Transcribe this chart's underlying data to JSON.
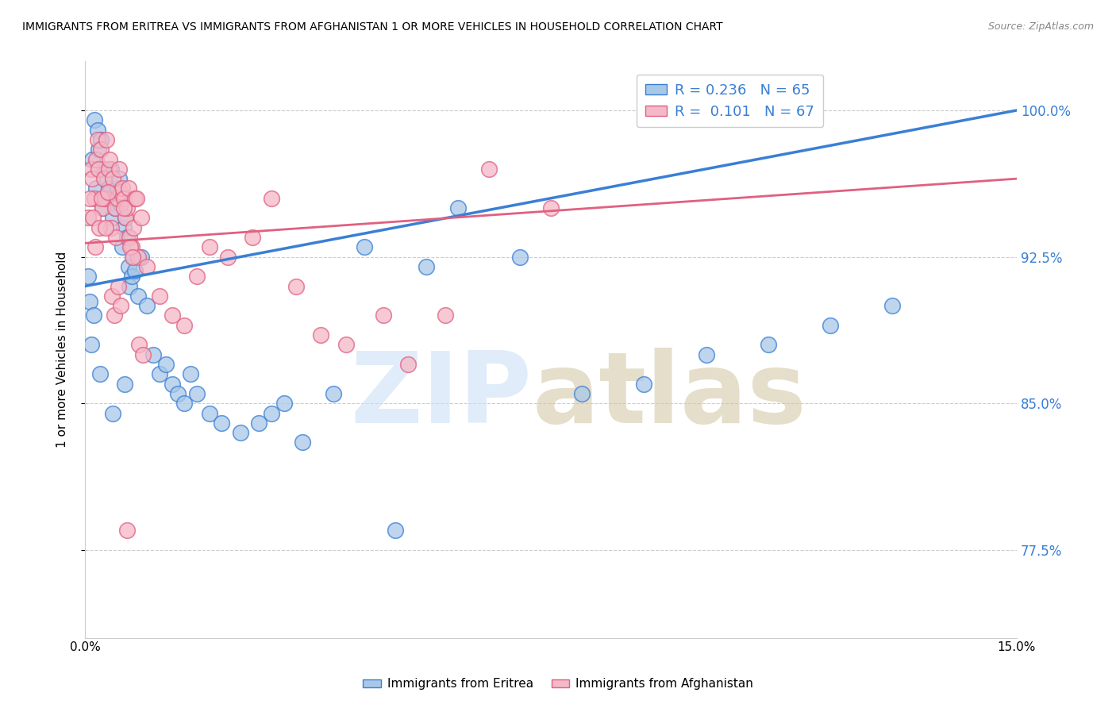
{
  "title": "IMMIGRANTS FROM ERITREA VS IMMIGRANTS FROM AFGHANISTAN 1 OR MORE VEHICLES IN HOUSEHOLD CORRELATION CHART",
  "source": "Source: ZipAtlas.com",
  "ylabel": "1 or more Vehicles in Household",
  "R_eritrea": 0.236,
  "N_eritrea": 65,
  "R_afghanistan": 0.101,
  "N_afghanistan": 67,
  "color_eritrea": "#a8c8e8",
  "color_afghanistan": "#f5b8c8",
  "line_color_eritrea": "#3a7fd5",
  "line_color_afghanistan": "#e06080",
  "legend_eritrea": "Immigrants from Eritrea",
  "legend_afghanistan": "Immigrants from Afghanistan",
  "xmin": 0.0,
  "xmax": 15.0,
  "ymin": 73.0,
  "ymax": 102.5,
  "yticks": [
    77.5,
    85.0,
    92.5,
    100.0
  ],
  "blue_line_x0": 0.0,
  "blue_line_y0": 91.0,
  "blue_line_x1": 15.0,
  "blue_line_y1": 100.0,
  "pink_line_x0": 0.0,
  "pink_line_y0": 93.2,
  "pink_line_x1": 15.0,
  "pink_line_y1": 96.5,
  "eritrea_x": [
    0.05,
    0.1,
    0.12,
    0.15,
    0.18,
    0.2,
    0.22,
    0.25,
    0.28,
    0.3,
    0.32,
    0.35,
    0.38,
    0.4,
    0.42,
    0.45,
    0.48,
    0.5,
    0.52,
    0.55,
    0.58,
    0.6,
    0.62,
    0.65,
    0.68,
    0.7,
    0.72,
    0.75,
    0.78,
    0.8,
    0.85,
    0.9,
    1.0,
    1.1,
    1.2,
    1.3,
    1.4,
    1.5,
    1.6,
    1.7,
    1.8,
    2.0,
    2.2,
    2.5,
    2.8,
    3.0,
    3.2,
    3.5,
    4.0,
    4.5,
    5.0,
    5.5,
    6.0,
    7.0,
    8.0,
    9.0,
    10.0,
    11.0,
    12.0,
    13.0,
    0.08,
    0.14,
    0.24,
    0.44,
    0.64
  ],
  "eritrea_y": [
    91.5,
    88.0,
    97.5,
    99.5,
    96.0,
    99.0,
    98.0,
    98.5,
    95.0,
    97.0,
    96.5,
    95.5,
    96.0,
    95.8,
    97.0,
    94.5,
    95.0,
    95.5,
    96.0,
    96.5,
    95.2,
    93.0,
    94.0,
    94.5,
    93.5,
    92.0,
    91.0,
    91.5,
    92.5,
    91.8,
    90.5,
    92.5,
    90.0,
    87.5,
    86.5,
    87.0,
    86.0,
    85.5,
    85.0,
    86.5,
    85.5,
    84.5,
    84.0,
    83.5,
    84.0,
    84.5,
    85.0,
    83.0,
    85.5,
    93.0,
    78.5,
    92.0,
    95.0,
    92.5,
    85.5,
    86.0,
    87.5,
    88.0,
    89.0,
    90.0,
    90.2,
    89.5,
    86.5,
    84.5,
    86.0
  ],
  "afghanistan_x": [
    0.05,
    0.1,
    0.12,
    0.15,
    0.18,
    0.2,
    0.22,
    0.25,
    0.28,
    0.3,
    0.32,
    0.35,
    0.38,
    0.4,
    0.42,
    0.45,
    0.48,
    0.5,
    0.52,
    0.55,
    0.58,
    0.6,
    0.62,
    0.65,
    0.68,
    0.7,
    0.72,
    0.75,
    0.78,
    0.8,
    0.85,
    0.9,
    1.0,
    1.2,
    1.4,
    1.6,
    1.8,
    2.0,
    2.3,
    2.7,
    3.0,
    3.4,
    3.8,
    4.2,
    4.8,
    5.2,
    5.8,
    6.5,
    7.5,
    0.08,
    0.13,
    0.17,
    0.23,
    0.27,
    0.33,
    0.37,
    0.43,
    0.47,
    0.53,
    0.57,
    0.63,
    0.67,
    0.73,
    0.77,
    0.83,
    0.87,
    0.93
  ],
  "afghanistan_y": [
    94.5,
    97.0,
    96.5,
    95.5,
    97.5,
    98.5,
    97.0,
    98.0,
    95.0,
    96.5,
    95.5,
    98.5,
    97.0,
    97.5,
    94.0,
    96.5,
    95.0,
    93.5,
    95.5,
    97.0,
    95.8,
    96.0,
    95.5,
    94.5,
    95.0,
    96.0,
    93.5,
    93.0,
    94.0,
    95.5,
    92.5,
    94.5,
    92.0,
    90.5,
    89.5,
    89.0,
    91.5,
    93.0,
    92.5,
    93.5,
    95.5,
    91.0,
    88.5,
    88.0,
    89.5,
    87.0,
    89.5,
    97.0,
    95.0,
    95.5,
    94.5,
    93.0,
    94.0,
    95.5,
    94.0,
    95.8,
    90.5,
    89.5,
    91.0,
    90.0,
    95.0,
    78.5,
    93.0,
    92.5,
    95.5,
    88.0,
    87.5
  ]
}
